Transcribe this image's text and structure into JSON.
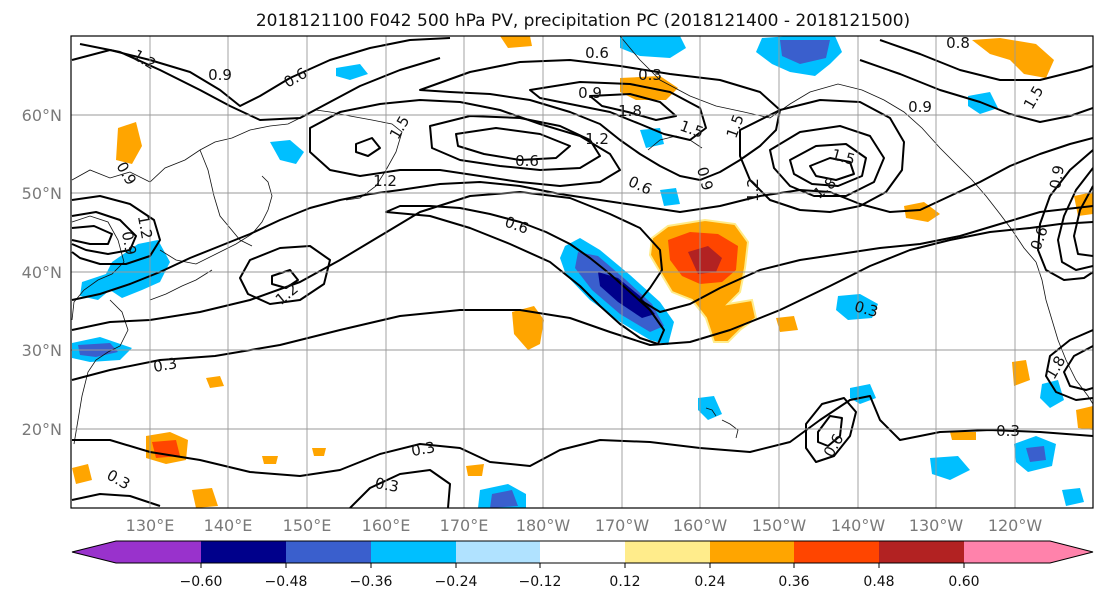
{
  "title": "2018121100 F042 500 hPa PV, precipitation PC (2018121400 - 2018121500)",
  "lat_labels": [
    "60°N",
    "50°N",
    "40°N",
    "30°N",
    "20°N"
  ],
  "lon_labels": [
    "130°E",
    "140°E",
    "150°E",
    "160°E",
    "170°E",
    "180°W",
    "170°W",
    "160°W",
    "150°W",
    "140°W",
    "130°W",
    "120°W"
  ],
  "colorbar": {
    "colors": [
      "#9932cc",
      "#00008b",
      "#3a5fcd",
      "#00bfff",
      "#b0e2ff",
      "#ffffff",
      "#ffec8b",
      "#ffa500",
      "#ff4500",
      "#b22222",
      "#ff82ab"
    ],
    "tick_labels": [
      "−0.60",
      "−0.48",
      "−0.36",
      "−0.24",
      "−0.12",
      "0.12",
      "0.24",
      "0.36",
      "0.48",
      "0.60"
    ]
  },
  "pv_contour_labels": [
    "1.2",
    "0.9",
    "0.6",
    "0.6",
    "0.3",
    "0.9",
    "1.8",
    "1.5",
    "1.2",
    "0.6",
    "0.6",
    "0.6",
    "0.9",
    "1.2",
    "1.5",
    "1.8",
    "0.9",
    "0.9",
    "1.2",
    "0.3",
    "0.6",
    "0.3",
    "0.3",
    "0.3",
    "0.3",
    "1.5",
    "1.2",
    "1.2",
    "0.9",
    "0.9",
    "0.3",
    "1.5",
    "0.6",
    "0.8",
    "1.5",
    "1.8"
  ]
}
